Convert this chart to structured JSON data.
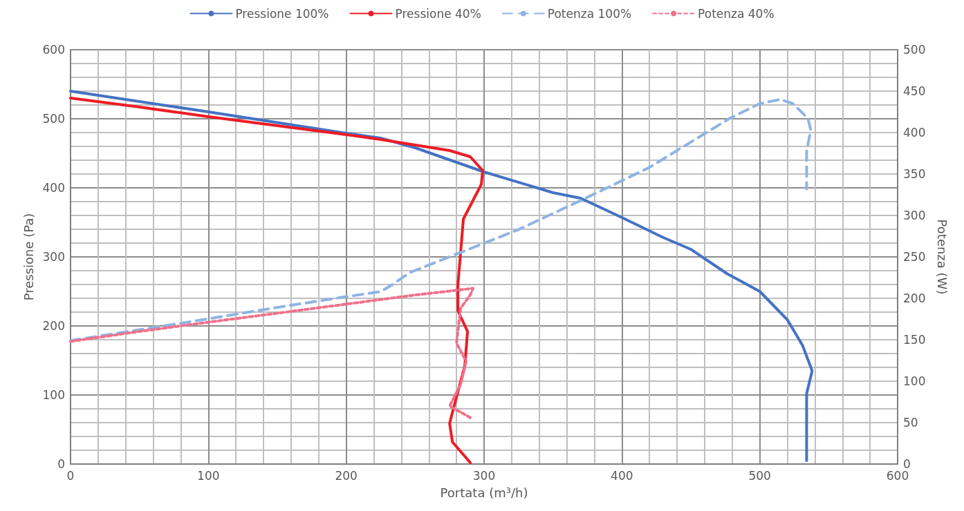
{
  "chart_data": {
    "type": "line",
    "xlabel": "Portata (m³/h)",
    "ylabel": "Pressione (Pa)",
    "y2label": "Potenza (W)",
    "xlim": [
      0,
      600
    ],
    "xticks": [
      0,
      100,
      200,
      300,
      400,
      500,
      600
    ],
    "ylim": [
      0,
      600
    ],
    "yticks": [
      0,
      100,
      200,
      300,
      400,
      500,
      600
    ],
    "y2lim": [
      0,
      500
    ],
    "y2ticks": [
      0,
      50,
      100,
      150,
      200,
      250,
      300,
      350,
      400,
      450,
      500
    ],
    "grid": true,
    "legend": "top",
    "marker": "none",
    "series": [
      {
        "name": "Pressione 100%",
        "color": "#4472c4",
        "line_style": "solid",
        "x": [
          0,
          100,
          200,
          225,
          250,
          300,
          350,
          370,
          400,
          430,
          450,
          476,
          500,
          520,
          531,
          538,
          534,
          534
        ],
        "values": [
          540,
          510,
          479,
          472,
          458,
          423,
          393,
          385,
          357,
          328,
          311,
          276,
          250,
          209,
          172,
          135,
          102,
          5
        ]
      },
      {
        "name": "Pressione 40%",
        "color": "#ee1c25",
        "line_style": "solid",
        "x": [
          0,
          50,
          100,
          150,
          200,
          225,
          250,
          275,
          290,
          299,
          298,
          285,
          281,
          281,
          288,
          286,
          278,
          275,
          277,
          290
        ],
        "values": [
          530,
          517,
          503,
          490,
          477,
          470,
          462,
          454,
          445,
          425,
          405,
          355,
          259,
          222,
          192,
          142,
          82,
          59,
          32,
          2
        ]
      },
      {
        "name": "Potenza 100%",
        "color": "#8eb4e3",
        "line_style": "dashed",
        "axis": "y2",
        "x": [
          0,
          50,
          99,
          150,
          200,
          225,
          233,
          246,
          325,
          370,
          420,
          478,
          500,
          515,
          524,
          535,
          537,
          534,
          534
        ],
        "values": [
          149,
          162,
          175,
          189,
          202,
          208,
          216,
          231,
          283,
          318,
          358,
          417,
          435,
          440,
          435,
          417,
          403,
          378,
          332
        ]
      },
      {
        "name": "Potenza 40%",
        "color": "#f0708a",
        "line_style": "dotted",
        "axis": "y2",
        "x": [
          0,
          50,
          99,
          150,
          200,
          250,
          292,
          290,
          283,
          280,
          287,
          283,
          275,
          290
        ],
        "values": [
          148,
          160,
          171,
          182,
          193,
          204,
          212,
          204,
          188,
          146,
          124,
          96,
          70,
          56
        ]
      }
    ]
  }
}
